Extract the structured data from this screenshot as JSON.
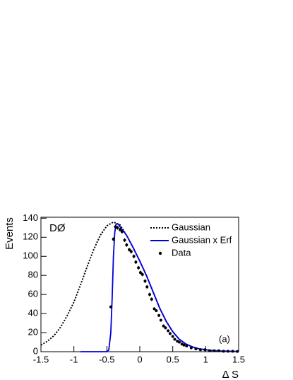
{
  "chart_data": {
    "type": "line",
    "xlabel": "Δ S",
    "ylabel": "Events",
    "annotations": [
      "DØ",
      "(a)"
    ],
    "xlim": [
      -1.5,
      1.5
    ],
    "xticks": [
      -1.5,
      -1,
      -0.5,
      0,
      0.5,
      1,
      1.5
    ],
    "ylim": [
      0,
      141
    ],
    "yticks": [
      0,
      20,
      40,
      60,
      80,
      100,
      120,
      140
    ],
    "legend": "top-right",
    "series": [
      {
        "name": "Gaussian",
        "color": "#000000",
        "style": "dotted",
        "x": [
          -1.5,
          -1.4,
          -1.3,
          -1.2,
          -1.1,
          -1.0,
          -0.9,
          -0.8,
          -0.7,
          -0.6,
          -0.5,
          -0.4,
          -0.3,
          -0.2,
          -0.1,
          0,
          0.1,
          0.2,
          0.3,
          0.4,
          0.5,
          0.6,
          0.7,
          0.8,
          0.9,
          1.0,
          1.1,
          1.2,
          1.3,
          1.4,
          1.5
        ],
        "values": [
          7,
          11,
          17,
          26,
          38,
          52,
          70,
          89,
          107,
          122,
          132,
          136,
          133,
          122,
          109,
          95,
          80,
          63,
          46,
          32,
          21,
          13,
          8,
          5,
          3,
          2,
          1.2,
          0.7,
          0.5,
          0.3,
          0.2
        ]
      },
      {
        "name": "Gaussian x Erf",
        "color": "#0000dd",
        "style": "solid",
        "x": [
          -0.9,
          -0.5,
          -0.47,
          -0.44,
          -0.42,
          -0.4,
          -0.38,
          -0.36,
          -0.33,
          -0.3,
          -0.2,
          -0.1,
          0,
          0.1,
          0.2,
          0.3,
          0.4,
          0.5,
          0.6,
          0.7,
          0.8,
          0.9,
          1.0,
          1.1,
          1.2,
          1.3,
          1.4,
          1.5
        ],
        "values": [
          0,
          0,
          2,
          20,
          55,
          100,
          125,
          134,
          134,
          131,
          122,
          109,
          95,
          80,
          63,
          46,
          32,
          21,
          13,
          8,
          5,
          3,
          2,
          1.2,
          0.7,
          0.5,
          0.3,
          0.2
        ]
      },
      {
        "name": "Data",
        "color": "#000000",
        "style": "points",
        "x": [
          -0.44,
          -0.4,
          -0.37,
          -0.34,
          -0.3,
          -0.27,
          -0.23,
          -0.2,
          -0.16,
          -0.13,
          -0.09,
          -0.06,
          -0.02,
          0.01,
          0.04,
          0.08,
          0.11,
          0.15,
          0.18,
          0.22,
          0.25,
          0.29,
          0.32,
          0.36,
          0.39,
          0.43,
          0.46,
          0.5,
          0.53,
          0.57,
          0.6,
          0.64,
          0.67,
          0.71,
          0.78,
          0.85,
          0.92,
          0.99,
          1.06,
          1.13,
          1.2,
          1.27,
          1.34,
          1.41,
          1.48
        ],
        "values": [
          47,
          118,
          131,
          130,
          128,
          126,
          117,
          112,
          107,
          105,
          100,
          94,
          88,
          83,
          81,
          74,
          68,
          60,
          55,
          45,
          43,
          38,
          33,
          27,
          25,
          22,
          19,
          16,
          13,
          11,
          10,
          8,
          7,
          6,
          4,
          3,
          2,
          2,
          1,
          1,
          1,
          0.5,
          0.5,
          0.5,
          0.3
        ],
        "errors": [
          1.5,
          2,
          2,
          2,
          2,
          2,
          2,
          2,
          2,
          2,
          2,
          2,
          2,
          2,
          2,
          2,
          2,
          2,
          2,
          1.5,
          1.5,
          1.5,
          1.5,
          1.5,
          1.5,
          1.5,
          1.5,
          1.5,
          1,
          1,
          1,
          1,
          1,
          1,
          1,
          1,
          1,
          1,
          1,
          1,
          1,
          0.5,
          0.5,
          0.5,
          0.5
        ]
      }
    ]
  }
}
